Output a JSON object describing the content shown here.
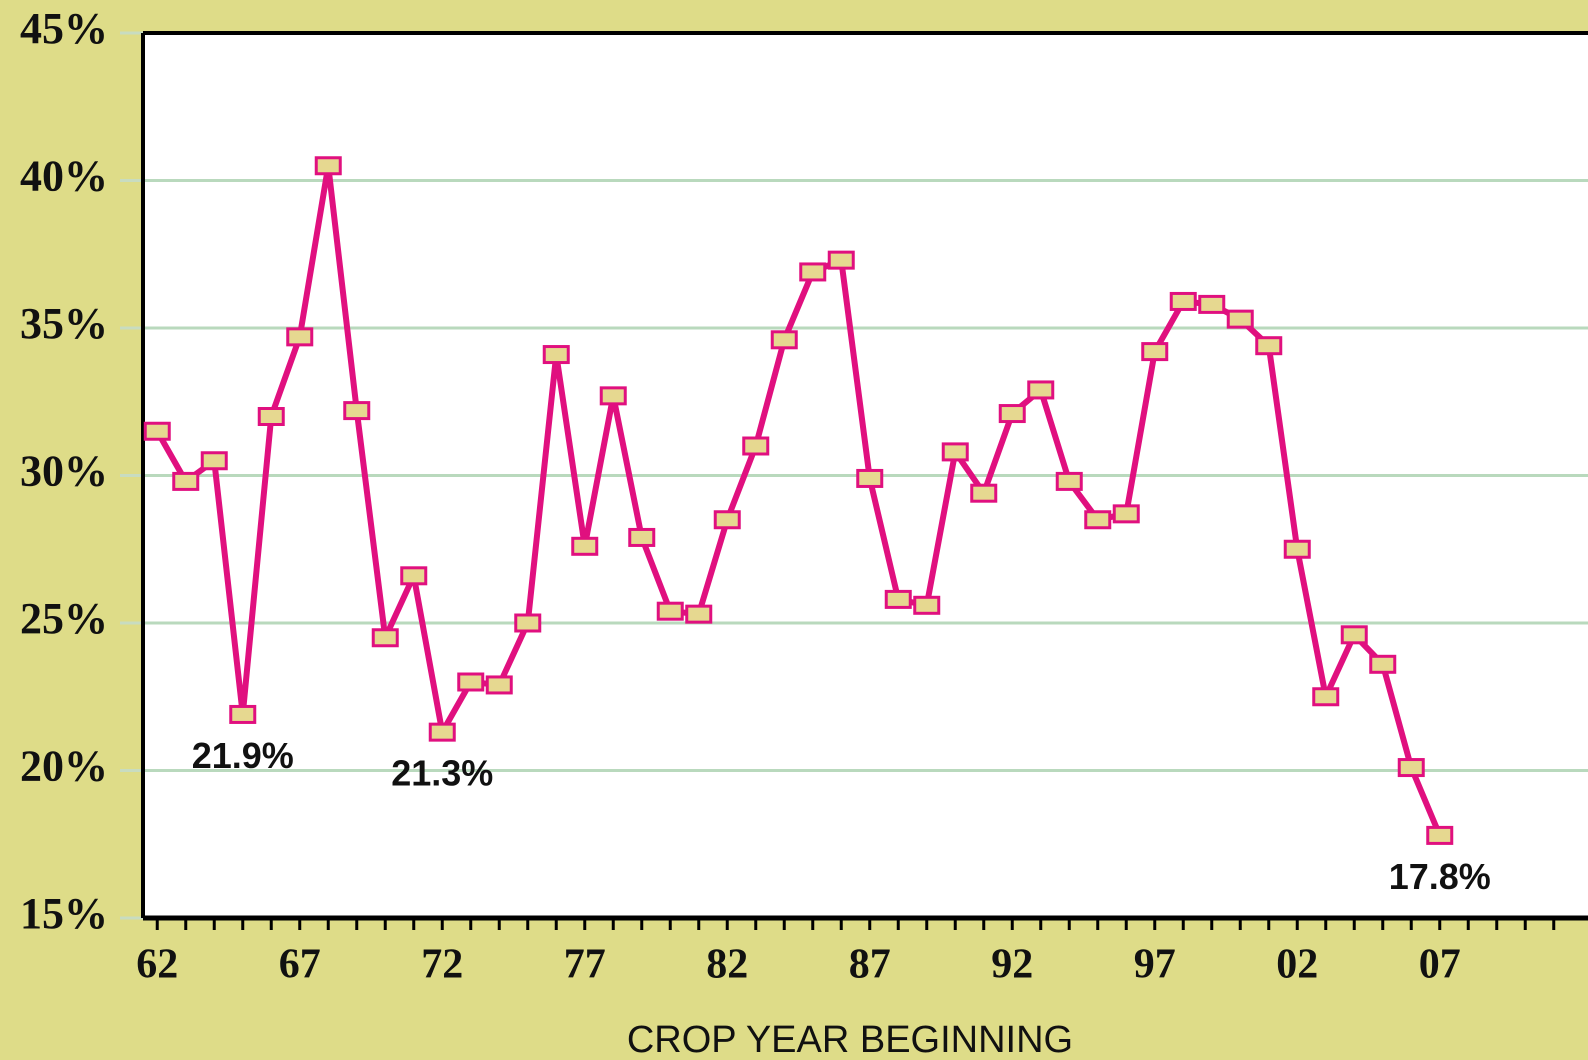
{
  "chart_data": {
    "type": "line",
    "x_label": "CROP YEAR BEGINNING",
    "categories": [
      "62",
      null,
      null,
      null,
      null,
      "67",
      null,
      null,
      null,
      null,
      "72",
      null,
      null,
      null,
      null,
      "77",
      null,
      null,
      null,
      null,
      "82",
      null,
      null,
      null,
      null,
      "87",
      null,
      null,
      null,
      null,
      "92",
      null,
      null,
      null,
      null,
      "97",
      null,
      null,
      null,
      null,
      "02",
      null,
      null,
      null,
      null,
      "07",
      null,
      null,
      null,
      null
    ],
    "series": [
      {
        "color": "#e0107f",
        "marker_fill": "#e6d890",
        "values": [
          31.5,
          29.8,
          30.5,
          21.9,
          32.0,
          34.7,
          40.5,
          32.2,
          24.5,
          26.6,
          21.3,
          23.0,
          22.9,
          25.0,
          34.1,
          27.6,
          32.7,
          27.9,
          25.4,
          25.3,
          28.5,
          31.0,
          34.6,
          36.9,
          37.3,
          29.9,
          25.8,
          25.6,
          30.8,
          29.4,
          32.1,
          32.9,
          29.8,
          28.5,
          28.7,
          34.2,
          35.9,
          35.8,
          35.3,
          34.4,
          27.5,
          22.5,
          24.6,
          23.6,
          20.1,
          17.8,
          null,
          null,
          null,
          null
        ],
        "value_labels": [
          null,
          null,
          null,
          "21.9%",
          null,
          null,
          null,
          null,
          null,
          null,
          "21.3%",
          null,
          null,
          null,
          null,
          null,
          null,
          null,
          null,
          null,
          null,
          null,
          null,
          null,
          null,
          null,
          null,
          null,
          null,
          null,
          null,
          null,
          null,
          null,
          null,
          null,
          null,
          null,
          null,
          null,
          null,
          null,
          null,
          null,
          null,
          "17.8%",
          null,
          null,
          null,
          null
        ]
      }
    ],
    "ylim": [
      15,
      45
    ],
    "yticks": [
      {
        "value": 15,
        "label": "15%"
      },
      {
        "value": 20,
        "label": "20%"
      },
      {
        "value": 25,
        "label": "25%"
      },
      {
        "value": 30,
        "label": "30%"
      },
      {
        "value": 35,
        "label": "35%"
      },
      {
        "value": 40,
        "label": "40%"
      },
      {
        "value": 45,
        "label": "45%"
      }
    ],
    "grid": true
  }
}
